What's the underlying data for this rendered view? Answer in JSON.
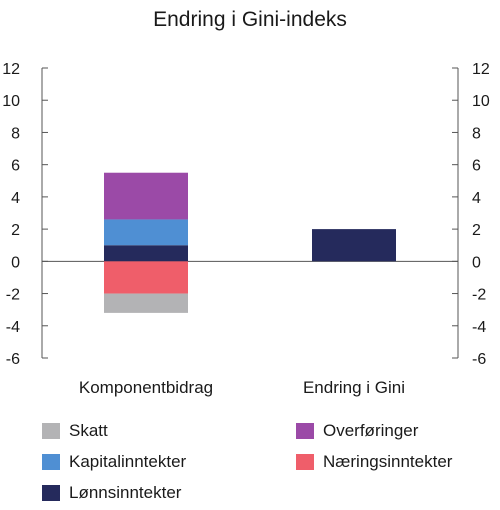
{
  "chart_data": {
    "type": "bar",
    "stacked": true,
    "title": "Endring i Gini-indeks",
    "categories": [
      "Komponentbidrag",
      "Endring i Gini"
    ],
    "ylim": [
      -6,
      12
    ],
    "yticks": [
      -6,
      -4,
      -2,
      0,
      2,
      4,
      6,
      8,
      10,
      12
    ],
    "grid": false,
    "legend_position": "bottom",
    "series": [
      {
        "name": "Lønnsinntekter",
        "color": "#252a5c",
        "values": [
          1.0,
          2.0
        ]
      },
      {
        "name": "Kapitalinntekter",
        "color": "#4f8fd3",
        "values": [
          1.6,
          0
        ]
      },
      {
        "name": "Overføringer",
        "color": "#9b4aa7",
        "values": [
          2.9,
          0
        ]
      },
      {
        "name": "Næringsinntekter",
        "color": "#ef5e6a",
        "values": [
          -2.0,
          0
        ]
      },
      {
        "name": "Skatt",
        "color": "#b3b3b5",
        "values": [
          -1.2,
          0
        ]
      }
    ],
    "legend_order": [
      "Skatt",
      "Overføringer",
      "Kapitalinntekter",
      "Næringsinntekter",
      "Lønnsinntekter"
    ]
  }
}
